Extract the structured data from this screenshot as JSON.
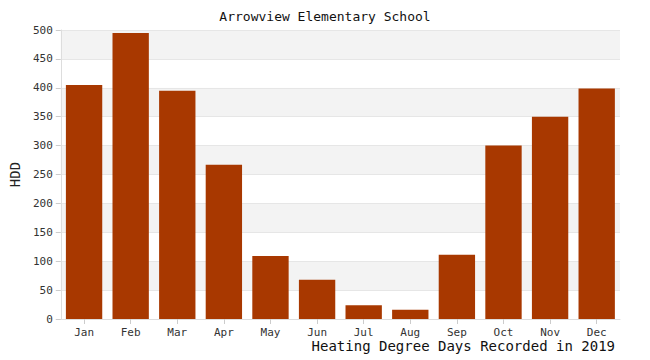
{
  "chart_data": {
    "type": "bar",
    "title": "Arrowview Elementary School",
    "x_label": "Heating Degree Days Recorded in 2019",
    "y_label": "HDD",
    "categories": [
      "Jan",
      "Feb",
      "Mar",
      "Apr",
      "May",
      "Jun",
      "Jul",
      "Aug",
      "Sep",
      "Oct",
      "Nov",
      "Dec"
    ],
    "values": [
      405,
      495,
      395,
      267,
      109,
      68,
      24,
      16,
      111,
      300,
      350,
      399
    ],
    "color": "#a83800",
    "ylim": [
      0,
      500
    ],
    "yticks": [
      0,
      50,
      100,
      150,
      200,
      250,
      300,
      350,
      400,
      450,
      500
    ],
    "grid": true
  }
}
